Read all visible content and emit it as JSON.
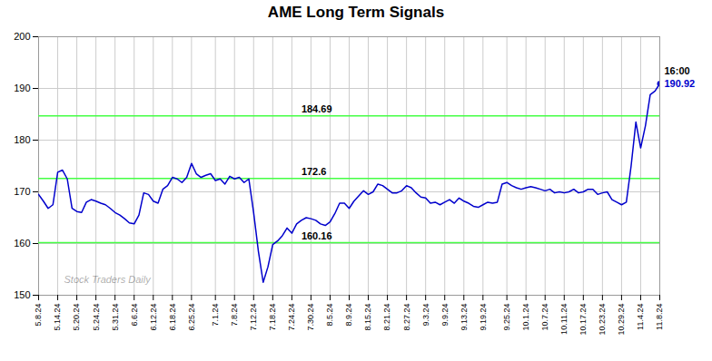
{
  "chart_data": {
    "type": "line",
    "title": "AME Long Term Signals",
    "categories": [
      "5.8.24",
      null,
      null,
      null,
      "5.14.24",
      null,
      null,
      null,
      "5.20.24",
      null,
      null,
      null,
      "5.24.24",
      null,
      null,
      null,
      "5.31.24",
      null,
      null,
      null,
      "6.6.24",
      null,
      null,
      null,
      "6.12.24",
      null,
      null,
      null,
      "6.18.24",
      null,
      null,
      null,
      "6.25.24",
      null,
      null,
      null,
      null,
      "7.1.24",
      null,
      null,
      null,
      "7.8.24",
      null,
      null,
      null,
      "7.12.24",
      null,
      null,
      null,
      "7.18.24",
      null,
      null,
      null,
      "7.24.24",
      null,
      null,
      null,
      "7.30.24",
      null,
      null,
      null,
      "8.5.24",
      null,
      null,
      null,
      "8.9.24",
      null,
      null,
      null,
      "8.15.24",
      null,
      null,
      null,
      "8.21.24",
      null,
      null,
      null,
      "8.27.24",
      null,
      null,
      null,
      "9.3.24",
      null,
      null,
      null,
      "9.9.24",
      null,
      null,
      null,
      "9.13.24",
      null,
      null,
      null,
      "9.19.24",
      null,
      null,
      null,
      null,
      "9.25.24",
      null,
      null,
      null,
      "10.1.24",
      null,
      null,
      null,
      "10.7.24",
      null,
      null,
      null,
      "10.11.24",
      null,
      null,
      null,
      "10.17.24",
      null,
      null,
      null,
      "10.23.24",
      null,
      null,
      null,
      "10.29.24",
      null,
      null,
      null,
      "11.4.24",
      null,
      null,
      null,
      "11.8.24"
    ],
    "values": [
      169.5,
      168.2,
      166.8,
      167.5,
      173.8,
      174.2,
      172.5,
      166.8,
      166.2,
      166.0,
      168.0,
      168.5,
      168.2,
      167.8,
      167.5,
      166.8,
      166.0,
      165.5,
      164.8,
      164.0,
      163.8,
      165.5,
      169.8,
      169.5,
      168.2,
      167.8,
      170.5,
      171.2,
      172.8,
      172.5,
      171.8,
      172.8,
      175.5,
      173.5,
      172.8,
      173.2,
      173.5,
      172.2,
      172.5,
      171.5,
      173.0,
      172.5,
      172.8,
      171.8,
      172.5,
      166.0,
      158.5,
      152.5,
      155.5,
      159.8,
      160.5,
      161.5,
      163.0,
      162.0,
      163.8,
      164.5,
      165.0,
      164.8,
      164.5,
      163.8,
      163.5,
      164.2,
      165.8,
      167.8,
      167.8,
      166.8,
      168.2,
      169.2,
      170.2,
      169.5,
      170.0,
      171.5,
      171.2,
      170.5,
      169.8,
      169.8,
      170.2,
      171.2,
      170.8,
      169.8,
      169.0,
      168.8,
      167.8,
      168.0,
      167.5,
      168.0,
      168.5,
      167.8,
      168.8,
      168.2,
      167.8,
      167.2,
      167.0,
      167.5,
      168.0,
      167.8,
      168.0,
      171.5,
      171.8,
      171.2,
      170.8,
      170.5,
      170.8,
      171.0,
      170.8,
      170.5,
      170.2,
      170.5,
      169.8,
      170.0,
      169.8,
      170.0,
      170.5,
      169.8,
      170.0,
      170.5,
      170.5,
      169.5,
      169.8,
      170.0,
      168.5,
      168.0,
      167.5,
      168.0,
      175.0,
      183.5,
      178.5,
      182.8,
      188.8,
      189.5,
      190.92
    ],
    "color": "#0000cc",
    "hlines": {
      "values": [
        184.69,
        172.6,
        160.16
      ],
      "color": "#44ff44"
    },
    "annotations": [
      "16:00",
      "190.92"
    ],
    "watermark": "Stock Traders Daily",
    "ylim": [
      150,
      200
    ],
    "yticks": [
      150,
      160,
      170,
      180,
      190,
      200
    ],
    "grid": true
  }
}
